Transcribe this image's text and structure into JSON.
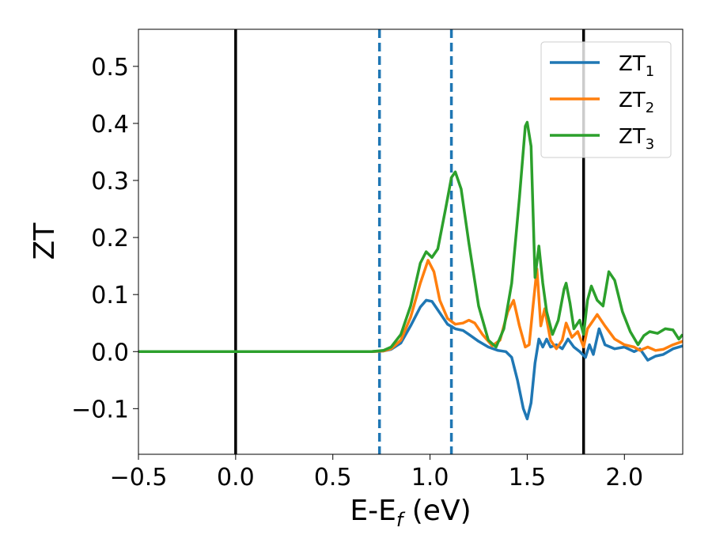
{
  "chart_data": {
    "type": "line",
    "title": "",
    "xlabel": "E-E",
    "xlabel_sub": "f",
    "xlabel_unit": " (eV)",
    "ylabel": "ZT",
    "xlim": [
      -0.5,
      2.3
    ],
    "ylim": [
      -0.18,
      0.565
    ],
    "grid": false,
    "legend_position": "top-right",
    "x_ticks": [
      -0.5,
      0.0,
      0.5,
      1.0,
      1.5,
      2.0
    ],
    "x_tick_labels": [
      "−0.5",
      "0.0",
      "0.5",
      "1.0",
      "1.5",
      "2.0"
    ],
    "y_ticks": [
      -0.1,
      0.0,
      0.1,
      0.2,
      0.3,
      0.4,
      0.5
    ],
    "y_tick_labels": [
      "−0.1",
      "0.0",
      "0.1",
      "0.2",
      "0.3",
      "0.4",
      "0.5"
    ],
    "vertical_lines": [
      {
        "x": 0.0,
        "style": "solid",
        "color": "#000000"
      },
      {
        "x": 0.74,
        "style": "dashed",
        "color": "#1f77b4"
      },
      {
        "x": 1.11,
        "style": "dashed",
        "color": "#1f77b4"
      },
      {
        "x": 1.79,
        "style": "solid",
        "color": "#000000"
      }
    ],
    "series": [
      {
        "name": "ZT",
        "name_sub": "1",
        "color": "#1f77b4",
        "points": [
          [
            -0.5,
            0
          ],
          [
            0.7,
            0
          ],
          [
            0.76,
            0.001
          ],
          [
            0.8,
            0.004
          ],
          [
            0.85,
            0.015
          ],
          [
            0.9,
            0.045
          ],
          [
            0.95,
            0.078
          ],
          [
            0.98,
            0.09
          ],
          [
            1.01,
            0.088
          ],
          [
            1.05,
            0.068
          ],
          [
            1.09,
            0.048
          ],
          [
            1.13,
            0.04
          ],
          [
            1.17,
            0.037
          ],
          [
            1.2,
            0.03
          ],
          [
            1.25,
            0.018
          ],
          [
            1.3,
            0.008
          ],
          [
            1.35,
            0.002
          ],
          [
            1.39,
            0.0
          ],
          [
            1.42,
            -0.01
          ],
          [
            1.45,
            -0.05
          ],
          [
            1.48,
            -0.1
          ],
          [
            1.5,
            -0.118
          ],
          [
            1.52,
            -0.09
          ],
          [
            1.54,
            -0.02
          ],
          [
            1.56,
            0.022
          ],
          [
            1.58,
            0.008
          ],
          [
            1.6,
            0.022
          ],
          [
            1.62,
            0.008
          ],
          [
            1.65,
            0.012
          ],
          [
            1.68,
            0.005
          ],
          [
            1.71,
            0.022
          ],
          [
            1.74,
            0.008
          ],
          [
            1.77,
            0.0
          ],
          [
            1.8,
            -0.01
          ],
          [
            1.82,
            0.012
          ],
          [
            1.84,
            -0.005
          ],
          [
            1.87,
            0.04
          ],
          [
            1.9,
            0.012
          ],
          [
            1.95,
            0.005
          ],
          [
            2.0,
            0.008
          ],
          [
            2.05,
            0.0
          ],
          [
            2.08,
            0.005
          ],
          [
            2.12,
            -0.015
          ],
          [
            2.16,
            -0.008
          ],
          [
            2.2,
            -0.005
          ],
          [
            2.25,
            0.005
          ],
          [
            2.3,
            0.01
          ]
        ]
      },
      {
        "name": "ZT",
        "name_sub": "2",
        "color": "#ff7f0e",
        "points": [
          [
            -0.5,
            0
          ],
          [
            0.7,
            0
          ],
          [
            0.76,
            0.001
          ],
          [
            0.8,
            0.005
          ],
          [
            0.85,
            0.02
          ],
          [
            0.9,
            0.06
          ],
          [
            0.95,
            0.12
          ],
          [
            0.99,
            0.16
          ],
          [
            1.02,
            0.14
          ],
          [
            1.05,
            0.09
          ],
          [
            1.09,
            0.058
          ],
          [
            1.13,
            0.048
          ],
          [
            1.17,
            0.05
          ],
          [
            1.2,
            0.055
          ],
          [
            1.23,
            0.05
          ],
          [
            1.27,
            0.03
          ],
          [
            1.32,
            0.01
          ],
          [
            1.36,
            0.02
          ],
          [
            1.4,
            0.07
          ],
          [
            1.43,
            0.09
          ],
          [
            1.46,
            0.045
          ],
          [
            1.49,
            0.008
          ],
          [
            1.51,
            0.012
          ],
          [
            1.53,
            0.08
          ],
          [
            1.55,
            0.145
          ],
          [
            1.57,
            0.045
          ],
          [
            1.59,
            0.075
          ],
          [
            1.62,
            0.02
          ],
          [
            1.65,
            0.005
          ],
          [
            1.68,
            0.02
          ],
          [
            1.7,
            0.05
          ],
          [
            1.73,
            0.025
          ],
          [
            1.76,
            0.035
          ],
          [
            1.79,
            0.008
          ],
          [
            1.81,
            0.04
          ],
          [
            1.84,
            0.055
          ],
          [
            1.86,
            0.065
          ],
          [
            1.9,
            0.045
          ],
          [
            1.95,
            0.022
          ],
          [
            2.0,
            0.012
          ],
          [
            2.05,
            0.008
          ],
          [
            2.08,
            0.002
          ],
          [
            2.12,
            0.008
          ],
          [
            2.16,
            0.002
          ],
          [
            2.2,
            0.004
          ],
          [
            2.25,
            0.012
          ],
          [
            2.3,
            0.018
          ]
        ]
      },
      {
        "name": "ZT",
        "name_sub": "3",
        "color": "#2ca02c",
        "points": [
          [
            -0.5,
            0
          ],
          [
            0.7,
            0
          ],
          [
            0.76,
            0.002
          ],
          [
            0.8,
            0.008
          ],
          [
            0.85,
            0.03
          ],
          [
            0.9,
            0.08
          ],
          [
            0.95,
            0.155
          ],
          [
            0.98,
            0.175
          ],
          [
            1.01,
            0.165
          ],
          [
            1.04,
            0.18
          ],
          [
            1.08,
            0.25
          ],
          [
            1.11,
            0.305
          ],
          [
            1.13,
            0.315
          ],
          [
            1.16,
            0.285
          ],
          [
            1.2,
            0.19
          ],
          [
            1.25,
            0.08
          ],
          [
            1.3,
            0.02
          ],
          [
            1.34,
            0.008
          ],
          [
            1.38,
            0.04
          ],
          [
            1.42,
            0.12
          ],
          [
            1.46,
            0.27
          ],
          [
            1.49,
            0.395
          ],
          [
            1.5,
            0.402
          ],
          [
            1.52,
            0.36
          ],
          [
            1.54,
            0.13
          ],
          [
            1.56,
            0.185
          ],
          [
            1.58,
            0.12
          ],
          [
            1.6,
            0.07
          ],
          [
            1.63,
            0.03
          ],
          [
            1.66,
            0.055
          ],
          [
            1.69,
            0.11
          ],
          [
            1.7,
            0.12
          ],
          [
            1.72,
            0.085
          ],
          [
            1.74,
            0.04
          ],
          [
            1.77,
            0.055
          ],
          [
            1.79,
            0.03
          ],
          [
            1.81,
            0.09
          ],
          [
            1.83,
            0.115
          ],
          [
            1.86,
            0.09
          ],
          [
            1.89,
            0.08
          ],
          [
            1.92,
            0.14
          ],
          [
            1.95,
            0.125
          ],
          [
            1.99,
            0.07
          ],
          [
            2.03,
            0.035
          ],
          [
            2.07,
            0.012
          ],
          [
            2.1,
            0.028
          ],
          [
            2.13,
            0.035
          ],
          [
            2.17,
            0.032
          ],
          [
            2.21,
            0.04
          ],
          [
            2.25,
            0.038
          ],
          [
            2.28,
            0.022
          ],
          [
            2.3,
            0.03
          ]
        ]
      }
    ]
  }
}
